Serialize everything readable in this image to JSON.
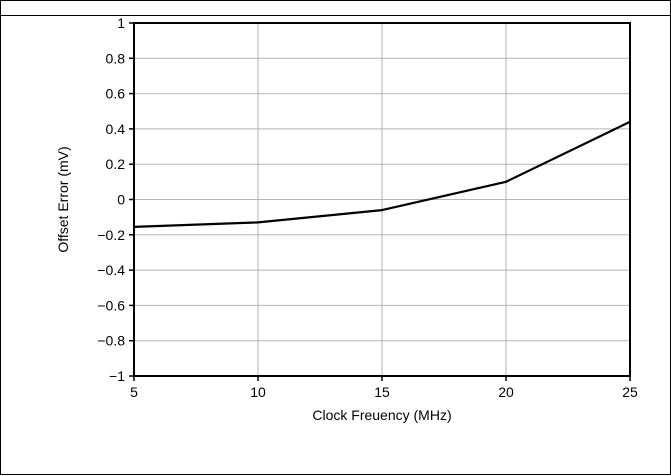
{
  "chart_data": {
    "type": "line",
    "title": "",
    "xlabel": "Clock Freuency (MHz)",
    "ylabel": "Offset Error (mV)",
    "xlim": [
      5,
      25
    ],
    "ylim": [
      -1,
      1
    ],
    "x_ticks": [
      5,
      10,
      15,
      20,
      25
    ],
    "y_ticks": [
      1,
      0.8,
      0.6,
      0.4,
      0.2,
      0,
      -0.2,
      -0.4,
      -0.6,
      -0.8,
      -1
    ],
    "x_tick_labels": [
      "5",
      "10",
      "15",
      "20",
      "25"
    ],
    "y_tick_labels": [
      "1",
      "0.8",
      "0.6",
      "0.4",
      "0.2",
      "0",
      "−0.2",
      "−0.4",
      "−0.6",
      "−0.8",
      "−1"
    ],
    "grid": true,
    "series": [
      {
        "x": [
          5,
          10,
          15,
          20,
          25
        ],
        "y": [
          -0.155,
          -0.13,
          -0.06,
          0.1,
          0.44
        ],
        "color": "#000000"
      }
    ]
  }
}
